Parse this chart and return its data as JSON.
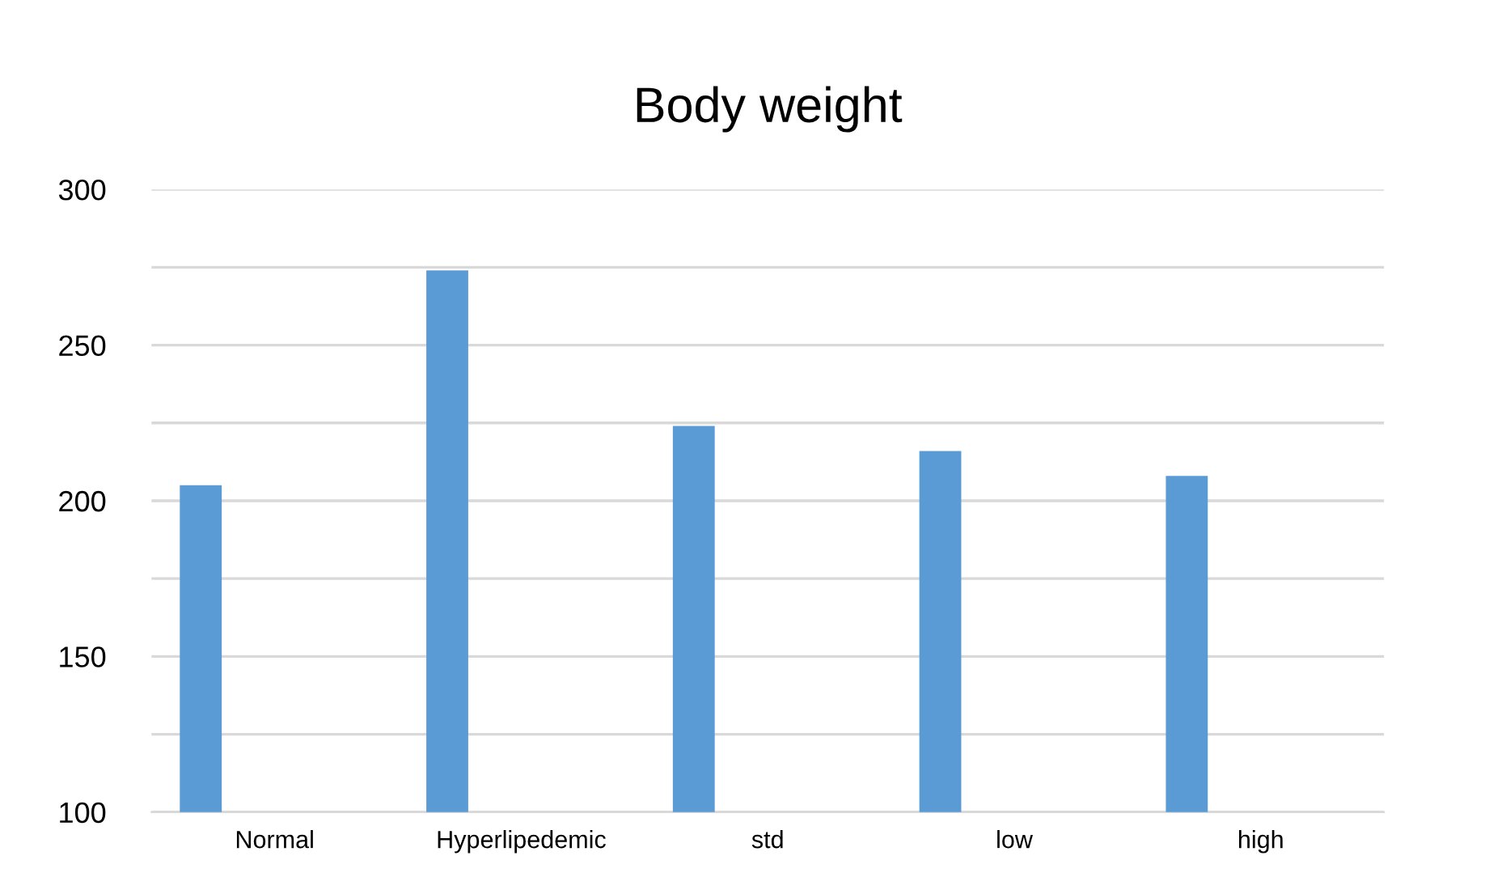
{
  "chart_data": {
    "type": "bar",
    "title": "Body weight",
    "categories": [
      "Normal",
      "Hyperlipedemic",
      "std",
      "low",
      "high"
    ],
    "values": [
      205,
      274,
      224,
      216,
      208
    ],
    "color": "#5b9bd5",
    "ylim": [
      100,
      300
    ],
    "yticks": [
      100,
      {
        "value": 125,
        "label": null
      },
      150,
      {
        "value": 175,
        "label": null
      },
      200,
      {
        "value": 225,
        "label": null
      },
      250,
      {
        "value": 275,
        "label": null
      },
      300
    ],
    "grid": "y",
    "legend": false
  }
}
